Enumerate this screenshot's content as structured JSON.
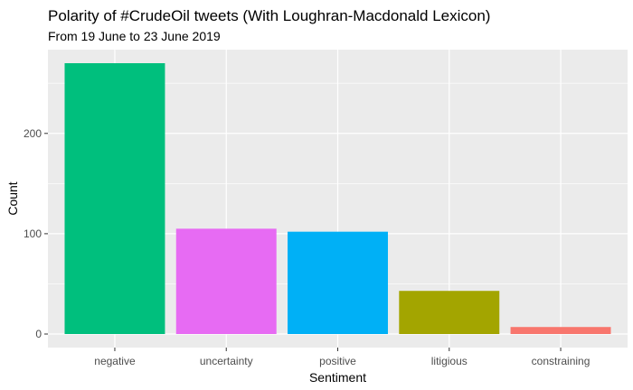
{
  "chart_data": {
    "type": "bar",
    "title": "Polarity of #CrudeOil tweets (With Loughran-Macdonald Lexicon)",
    "subtitle": "From 19 June to 23 June 2019",
    "xlabel": "Sentiment",
    "ylabel": "Count",
    "categories": [
      "negative",
      "uncertainty",
      "positive",
      "litigious",
      "constraining"
    ],
    "values": [
      270,
      105,
      102,
      43,
      7
    ],
    "colors": [
      "#00BF7D",
      "#E76BF3",
      "#00B0F6",
      "#A3A500",
      "#F8766D"
    ],
    "yticks": [
      0,
      100,
      200
    ],
    "ylim": [
      -13.5,
      283.5
    ],
    "grid": true,
    "legend": "none",
    "panel_background": "#EBEBEB"
  }
}
